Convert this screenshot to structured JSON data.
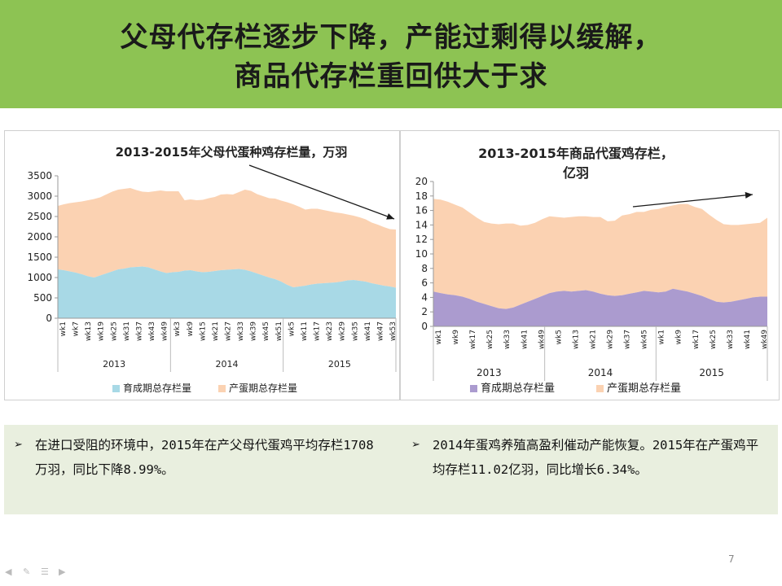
{
  "slide": {
    "title_line1": "父母代存栏逐步下降，产能过剩得以缓解，",
    "title_line2": "商品代存栏重回供大于求",
    "page_number": "7"
  },
  "bullets": {
    "left": "在进口受阻的环境中，2015年在产父母代蛋鸡平均存栏1708万羽，同比下降8.99%。",
    "right": "2014年蛋鸡养殖高盈利催动产能恢复。2015年在产蛋鸡平均存栏11.02亿羽，同比增长6.34%。",
    "marker": "➢"
  },
  "colors": {
    "title_band": "#8dc353",
    "blue": "#a8d9e6",
    "peach": "#fbd2b2",
    "purple": "#ab9bcf",
    "arrow": "#1a1a1a"
  },
  "chart_data": [
    {
      "type": "area",
      "stacked": true,
      "title": "2013-2015年父母代蛋种鸡存栏量，万羽",
      "ylim": [
        0,
        3500
      ],
      "yticks": [
        0,
        500,
        1000,
        1500,
        2000,
        2500,
        3000,
        3500
      ],
      "x_tick_labels": [
        "wk1",
        "wk7",
        "wk13",
        "wk19",
        "wk25",
        "wk31",
        "wk37",
        "wk43",
        "wk49",
        "wk3",
        "wk9",
        "wk15",
        "wk21",
        "wk27",
        "wk33",
        "wk39",
        "wk45",
        "wk51",
        "wk5",
        "wk11",
        "wk17",
        "wk23",
        "wk29",
        "wk35",
        "wk41",
        "wk47",
        "wk53"
      ],
      "years": [
        "2013",
        "2014",
        "2015"
      ],
      "legend": [
        "育成期总存栏量",
        "产蛋期总存栏量"
      ],
      "legend_position": "bottom",
      "series": [
        {
          "name": "育成期总存栏量",
          "color": "#a8d9e6",
          "values": [
            1200,
            1180,
            1150,
            1120,
            1080,
            1030,
            1000,
            1050,
            1100,
            1150,
            1200,
            1220,
            1250,
            1260,
            1270,
            1250,
            1200,
            1150,
            1110,
            1130,
            1140,
            1170,
            1180,
            1150,
            1130,
            1140,
            1160,
            1180,
            1190,
            1200,
            1210,
            1190,
            1150,
            1100,
            1050,
            1000,
            960,
            900,
            820,
            760,
            780,
            800,
            830,
            850,
            860,
            870,
            880,
            900,
            930,
            940,
            920,
            900,
            860,
            830,
            800,
            780,
            750
          ]
        },
        {
          "name": "产蛋期总存栏量",
          "color": "#fbd2b2",
          "values": [
            1560,
            1620,
            1680,
            1730,
            1790,
            1870,
            1930,
            1920,
            1940,
            1960,
            1960,
            1960,
            1950,
            1890,
            1840,
            1850,
            1920,
            1990,
            2010,
            1990,
            1980,
            1730,
            1740,
            1750,
            1780,
            1810,
            1820,
            1860,
            1860,
            1840,
            1890,
            1970,
            1980,
            1950,
            1950,
            1950,
            1980,
            1990,
            2030,
            2040,
            1960,
            1870,
            1860,
            1840,
            1800,
            1760,
            1720,
            1680,
            1620,
            1580,
            1560,
            1530,
            1490,
            1470,
            1440,
            1410,
            1430
          ]
        }
      ],
      "annotation": "arrow: downward trend"
    },
    {
      "type": "area",
      "stacked": true,
      "title": "2013-2015年商品代蛋鸡存栏，亿羽",
      "ylim": [
        0,
        20
      ],
      "yticks": [
        0,
        2,
        4,
        6,
        8,
        10,
        12,
        14,
        16,
        18,
        20
      ],
      "x_tick_labels": [
        "wk1",
        "wk9",
        "wk17",
        "wk25",
        "wk33",
        "wk41",
        "wk49",
        "wk5",
        "wk13",
        "wk21",
        "wk29",
        "wk37",
        "wk45",
        "wk1",
        "wk9",
        "wk17",
        "wk25",
        "wk33",
        "wk41",
        "wk49"
      ],
      "years": [
        "2013",
        "2014",
        "2015"
      ],
      "legend": [
        "育成期总存栏量",
        "产蛋期总存栏量"
      ],
      "legend_position": "bottom",
      "series": [
        {
          "name": "育成期总存栏量",
          "color": "#ab9bcf",
          "values": [
            4.8,
            4.6,
            4.4,
            4.3,
            4.1,
            3.8,
            3.4,
            3.1,
            2.8,
            2.5,
            2.4,
            2.6,
            3.0,
            3.4,
            3.8,
            4.2,
            4.6,
            4.8,
            4.9,
            4.8,
            4.9,
            5.0,
            4.8,
            4.5,
            4.3,
            4.2,
            4.3,
            4.5,
            4.7,
            4.9,
            4.8,
            4.7,
            4.8,
            5.2,
            5.0,
            4.8,
            4.5,
            4.2,
            3.8,
            3.4,
            3.3,
            3.4,
            3.6,
            3.8,
            4.0,
            4.1,
            4.1
          ]
        },
        {
          "name": "产蛋期总存栏量",
          "color": "#fbd2b2",
          "values": [
            12.8,
            12.9,
            12.8,
            12.5,
            12.3,
            11.9,
            11.6,
            11.3,
            11.4,
            11.6,
            11.8,
            11.6,
            10.9,
            10.6,
            10.5,
            10.6,
            10.6,
            10.3,
            10.1,
            10.3,
            10.3,
            10.2,
            10.3,
            10.6,
            10.2,
            10.4,
            11.0,
            11.0,
            11.1,
            10.9,
            11.3,
            11.5,
            11.7,
            11.5,
            11.9,
            12.1,
            12.0,
            12.0,
            11.6,
            11.3,
            10.8,
            10.6,
            10.4,
            10.3,
            10.2,
            10.2,
            10.9
          ]
        }
      ],
      "annotation": "arrow: upward trend"
    }
  ]
}
